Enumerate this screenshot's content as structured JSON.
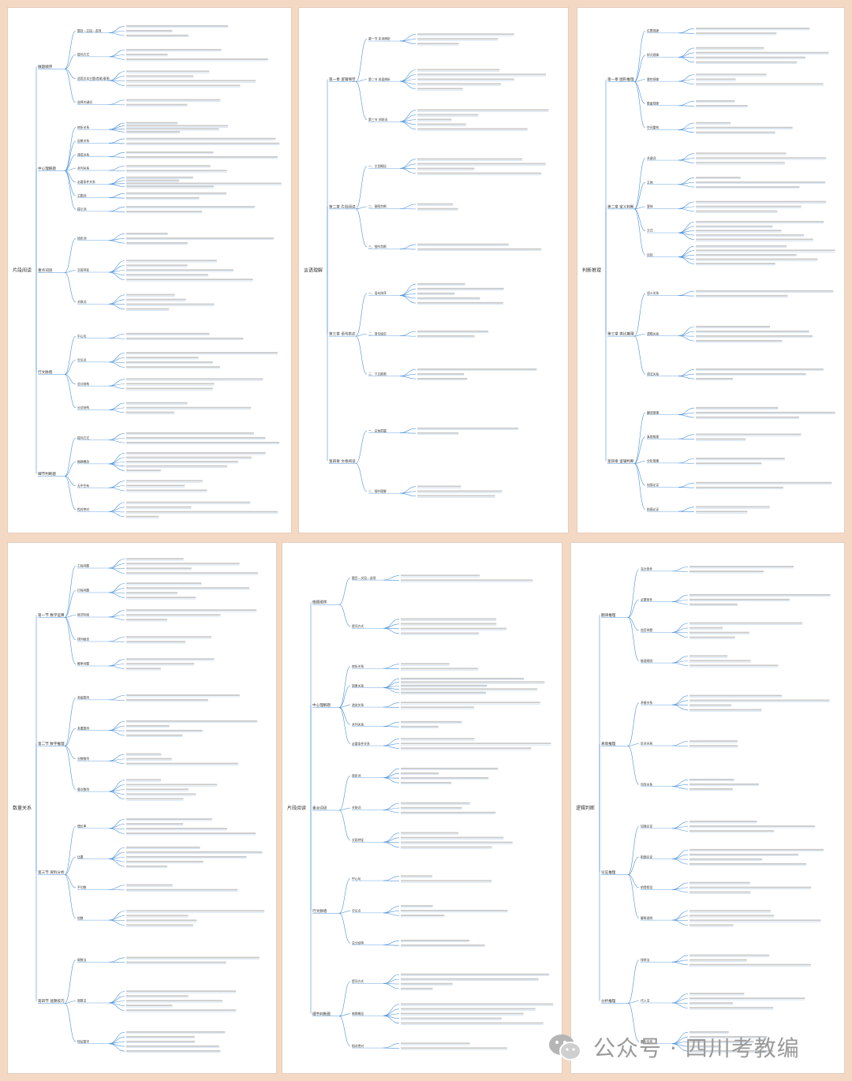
{
  "colors": {
    "background": "#f3d9c4",
    "line": "#4a90d9",
    "watermark": "#9a9a9a"
  },
  "panels": [
    {
      "id": "p1",
      "root": "片段阅读",
      "branches": [
        {
          "label": "做题顺序",
          "items": [
            "题目—文段—选项",
            "提问方式",
            "适用文本主题/首尾/意图",
            "选择关键词"
          ]
        },
        {
          "label": "中心理解题",
          "items": [
            "转折关系",
            "因果关系",
            "递进关系",
            "并列关系",
            "必要条件关系",
            "主题词",
            "提示词"
          ]
        },
        {
          "label": "重点词语",
          "items": [
            "转折词",
            "文段特征",
            "关联词"
          ]
        },
        {
          "label": "行文脉络",
          "items": [
            "中心句",
            "分论点",
            "总分结构",
            "分总结构"
          ]
        },
        {
          "label": "细节判断题",
          "items": [
            "提问方式",
            "偷换概念",
            "无中生有",
            "相对绝对"
          ]
        }
      ]
    },
    {
      "id": "p2",
      "root": "言语理解",
      "branches": [
        {
          "label": "第一章 逻辑填空",
          "items": [
            "第一节 实词辨析",
            "第二节 成语辨析",
            "第三节 关联词"
          ]
        },
        {
          "label": "第二章 片段阅读",
          "items": [
            "一、主旨概括",
            "二、意图判断",
            "三、细节判断"
          ]
        },
        {
          "label": "第三章 语句表达",
          "items": [
            "一、语句排序",
            "二、语句填空",
            "三、下文推断"
          ]
        },
        {
          "label": "第四章 文章阅读",
          "items": [
            "一、总体把握",
            "二、细节理解"
          ]
        }
      ]
    },
    {
      "id": "p3",
      "root": "判断推理",
      "branches": [
        {
          "label": "第一章 图形推理",
          "items": [
            "位置规律",
            "样式规律",
            "属性规律",
            "数量规律",
            "空间重构"
          ]
        },
        {
          "label": "第二章 定义判断",
          "items": [
            "关键词",
            "主体",
            "客体",
            "方式",
            "目的"
          ]
        },
        {
          "label": "第三章 类比推理",
          "items": [
            "语义关系",
            "逻辑关系",
            "语法关系"
          ]
        },
        {
          "label": "第四章 逻辑判断",
          "items": [
            "翻译推理",
            "真假推理",
            "分析推理",
            "加强论证",
            "削弱论证"
          ]
        }
      ]
    },
    {
      "id": "p4",
      "root": "数量关系",
      "branches": [
        {
          "label": "第一节 数学运算",
          "items": [
            "工程问题",
            "行程问题",
            "经济利润",
            "排列组合",
            "概率问题"
          ]
        },
        {
          "label": "第二节 数字推理",
          "items": [
            "多级数列",
            "多重数列",
            "分数数列",
            "幂次数列"
          ]
        },
        {
          "label": "第三节 资料分析",
          "items": [
            "增长率",
            "比重",
            "平均数",
            "倍数"
          ]
        },
        {
          "label": "第四节 速算技巧",
          "items": [
            "尾数法",
            "首数法",
            "特征数字"
          ]
        }
      ]
    },
    {
      "id": "p5",
      "root": "片段阅读",
      "branches": [
        {
          "label": "做题顺序",
          "items": [
            "题目—文段—选项",
            "提问方式"
          ]
        },
        {
          "label": "中心理解题",
          "items": [
            "转折关系",
            "因果关系",
            "递进关系",
            "并列关系",
            "必要条件关系"
          ]
        },
        {
          "label": "重点词语",
          "items": [
            "转折词",
            "关联词",
            "文段特征"
          ]
        },
        {
          "label": "行文脉络",
          "items": [
            "中心句",
            "分论点",
            "总分结构"
          ]
        },
        {
          "label": "细节判断题",
          "items": [
            "提问方式",
            "偷换概念",
            "相对绝对"
          ]
        }
      ]
    },
    {
      "id": "p6",
      "root": "逻辑判断",
      "branches": [
        {
          "label": "翻译推理",
          "items": [
            "充分条件",
            "必要条件",
            "逆否命题",
            "推理规则"
          ]
        },
        {
          "label": "真假推理",
          "items": [
            "矛盾关系",
            "反对关系",
            "包含关系"
          ]
        },
        {
          "label": "论证推理",
          "items": [
            "加强论证",
            "削弱论证",
            "前提假设",
            "解释说明"
          ]
        },
        {
          "label": "分析推理",
          "items": [
            "排除法",
            "代入法",
            "最大信息"
          ]
        }
      ]
    }
  ],
  "watermark": {
    "text": "公众号 · 四川考教编",
    "icon": "wechat-icon"
  }
}
